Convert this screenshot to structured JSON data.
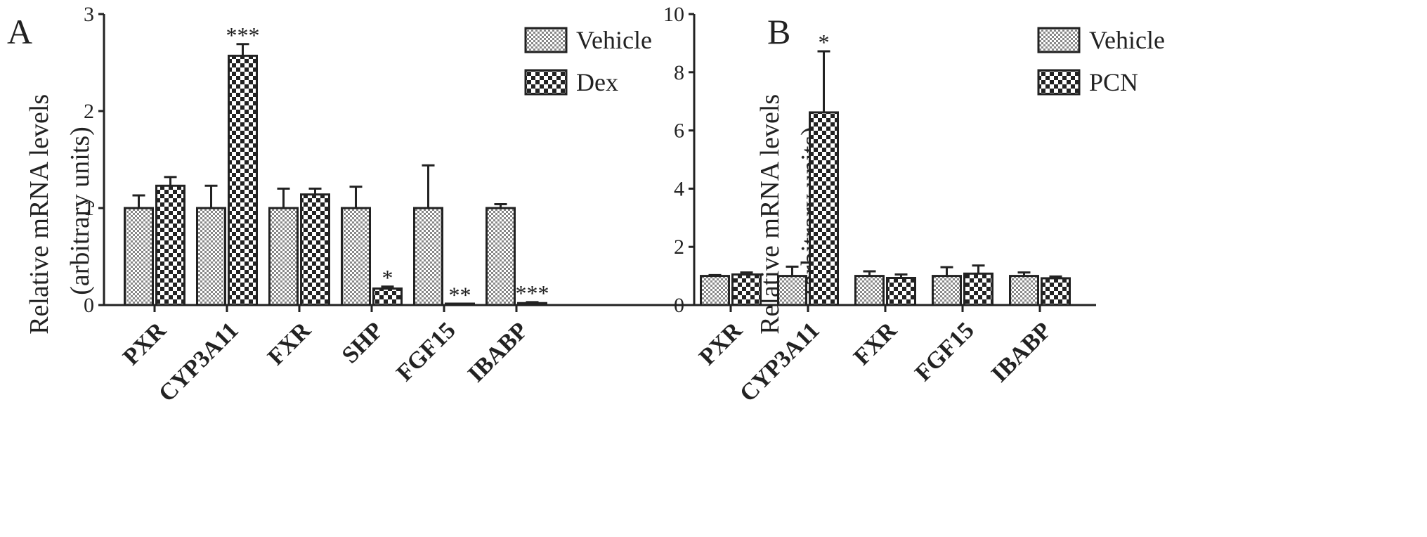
{
  "colors": {
    "axis": "#222222",
    "bar_fill": "#ffffff",
    "pattern_dark": "#222222",
    "pattern_light_vehicle": "#888888"
  },
  "chart_data": [
    {
      "type": "bar",
      "panel_label": "A",
      "ylabel_line1": "Relative mRNA levels",
      "ylabel_line2": "(arbitrary units)",
      "ylim": [
        0,
        3
      ],
      "yticks": [
        "0",
        "1",
        "2",
        "3"
      ],
      "ytick_values": [
        0,
        1,
        2,
        3
      ],
      "categories": [
        "PXR",
        "CYP3A11",
        "FXR",
        "SHP",
        "FGF15",
        "IBABP"
      ],
      "legend_position": "top-right",
      "series": [
        {
          "name": "Vehicle",
          "pattern": "fine-check",
          "values": [
            1.0,
            1.0,
            1.0,
            1.0,
            1.0,
            1.0
          ],
          "errors": [
            0.13,
            0.23,
            0.2,
            0.22,
            0.44,
            0.04
          ]
        },
        {
          "name": "Dex",
          "pattern": "coarse-check",
          "values": [
            1.23,
            2.57,
            1.14,
            0.17,
            0.01,
            0.02
          ],
          "errors": [
            0.09,
            0.12,
            0.06,
            0.02,
            0.0,
            0.01
          ]
        }
      ],
      "annotations": [
        {
          "category": "CYP3A11",
          "series": "Dex",
          "text": "***"
        },
        {
          "category": "SHP",
          "series": "Dex",
          "text": "*"
        },
        {
          "category": "FGF15",
          "series": "Dex",
          "text": "**"
        },
        {
          "category": "IBABP",
          "series": "Dex",
          "text": "***"
        }
      ]
    },
    {
      "type": "bar",
      "panel_label": "B",
      "ylabel_line1": "Relative mRNA levels",
      "ylabel_line2": "(arbitrary units)",
      "ylim": [
        0,
        10
      ],
      "yticks": [
        "0",
        "2",
        "4",
        "6",
        "8",
        "10"
      ],
      "ytick_values": [
        0,
        2,
        4,
        6,
        8,
        10
      ],
      "categories": [
        "PXR",
        "CYP3A11",
        "FXR",
        "FGF15",
        "IBABP"
      ],
      "legend_position": "top-right",
      "series": [
        {
          "name": "Vehicle",
          "pattern": "fine-check",
          "values": [
            1.0,
            1.0,
            1.0,
            1.0,
            1.0
          ],
          "errors": [
            0.03,
            0.32,
            0.16,
            0.3,
            0.12
          ]
        },
        {
          "name": "PCN",
          "pattern": "coarse-check",
          "values": [
            1.05,
            6.62,
            0.93,
            1.08,
            0.92
          ],
          "errors": [
            0.07,
            2.1,
            0.12,
            0.28,
            0.06
          ]
        }
      ],
      "annotations": [
        {
          "category": "CYP3A11",
          "series": "PCN",
          "text": "*"
        }
      ]
    }
  ]
}
